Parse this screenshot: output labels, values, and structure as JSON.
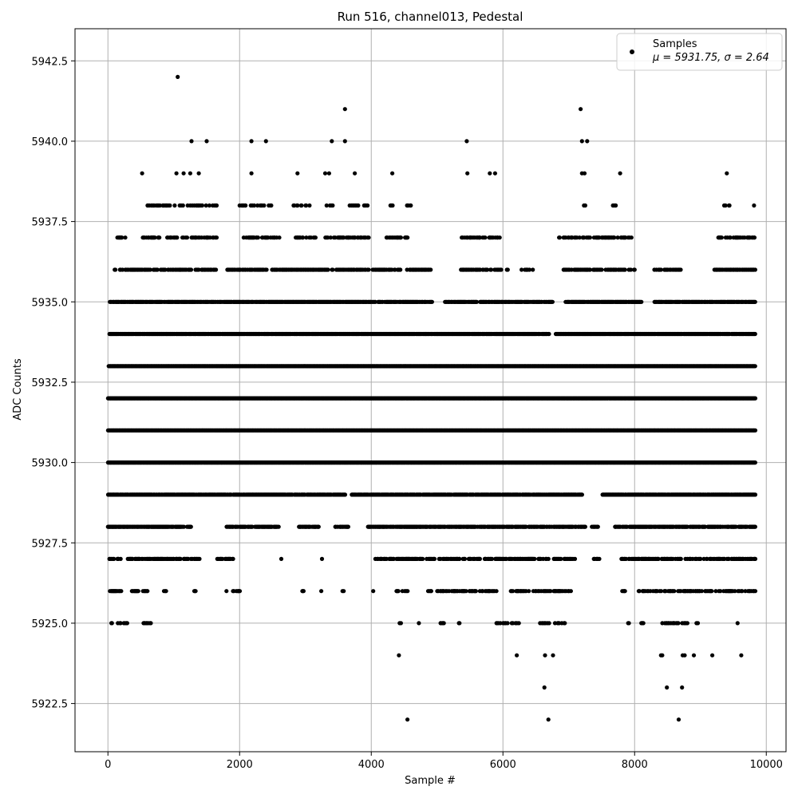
{
  "chart_data": {
    "type": "scatter",
    "title": "Run 516, channel013, Pedestal",
    "xlabel": "Sample #",
    "ylabel": "ADC Counts",
    "xlim": [
      -500,
      10300
    ],
    "ylim": [
      5921.0,
      5943.5
    ],
    "x_ticks": [
      0,
      2000,
      4000,
      6000,
      8000,
      10000
    ],
    "x_tick_labels": [
      "0",
      "2000",
      "4000",
      "6000",
      "8000",
      "10000"
    ],
    "y_ticks": [
      5922.5,
      5925.0,
      5927.5,
      5930.0,
      5932.5,
      5935.0,
      5937.5,
      5940.0,
      5942.5
    ],
    "y_tick_labels": [
      "5922.5",
      "5925.0",
      "5927.5",
      "5930.0",
      "5932.5",
      "5935.0",
      "5937.5",
      "5940.0",
      "5942.5"
    ],
    "grid": true,
    "legend": {
      "placement": "top-right",
      "series_label": "Samples",
      "stats_text": "μ = 5931.75, σ = 2.64"
    },
    "marker_color": "#000000",
    "series": [
      {
        "name": "Samples",
        "sample_range": [
          0,
          9830
        ],
        "mean": 5931.75,
        "sigma": 2.64,
        "level_segments": [
          {
            "y": 5942,
            "x": [
              1060
            ]
          },
          {
            "y": 5941,
            "x": [
              3600,
              7180
            ]
          },
          {
            "y": 5940,
            "x": [
              1270,
              1500,
              2180,
              2400,
              3400,
              3600,
              5450,
              7200,
              7280
            ]
          },
          {
            "y": 5939,
            "x": [
              520,
              1040,
              1150,
              1250,
              1380,
              2180,
              2880,
              3300,
              3360,
              3750,
              4320,
              5460,
              5800,
              5880,
              7200,
              7240,
              7780,
              9400
            ]
          },
          {
            "y": 5924,
            "x": [
              4420,
              6210,
              6640,
              6760,
              8400,
              8420,
              8730,
              8760,
              8900,
              9180,
              9620
            ]
          },
          {
            "y": 5923,
            "x": [
              6630,
              8490,
              8720
            ]
          },
          {
            "y": 5922,
            "x": [
              4550,
              6690,
              8670
            ]
          }
        ],
        "level_ranges": [
          {
            "y": 5938,
            "ranges": [
              [
                580,
                1650
              ],
              [
                1980,
                2480
              ],
              [
                2800,
                3080
              ],
              [
                3320,
                3460
              ],
              [
                3650,
                3980
              ],
              [
                4260,
                4360
              ],
              [
                4520,
                4600
              ],
              [
                7140,
                7260
              ],
              [
                7560,
                7720
              ],
              [
                9360,
                9460
              ],
              [
                9780,
                9830
              ]
            ],
            "density": 0.35
          },
          {
            "y": 5937,
            "ranges": [
              [
                80,
                260
              ],
              [
                520,
                1650
              ],
              [
                2050,
                2600
              ],
              [
                2850,
                3150
              ],
              [
                3300,
                4020
              ],
              [
                4200,
                4600
              ],
              [
                5360,
                5950
              ],
              [
                6850,
                7950
              ],
              [
                9230,
                9830
              ]
            ],
            "density": 0.45
          },
          {
            "y": 5936,
            "ranges": [
              [
                100,
                1650
              ],
              [
                1800,
                4450
              ],
              [
                4520,
                4900
              ],
              [
                5360,
                6100
              ],
              [
                6280,
                6450
              ],
              [
                6900,
                8000
              ],
              [
                8300,
                8700
              ],
              [
                9200,
                9830
              ]
            ],
            "density": 0.6
          },
          {
            "y": 5935,
            "ranges": [
              [
                30,
                4920
              ],
              [
                5100,
                5600
              ],
              [
                5650,
                6750
              ],
              [
                6950,
                8100
              ],
              [
                8300,
                9830
              ]
            ],
            "density": 0.85
          },
          {
            "y": 5934,
            "ranges": [
              [
                20,
                6700
              ],
              [
                6800,
                9830
              ]
            ],
            "density": 0.95
          },
          {
            "y": 5933,
            "ranges": [
              [
                10,
                9830
              ]
            ],
            "density": 1.0
          },
          {
            "y": 5932,
            "ranges": [
              [
                0,
                9830
              ]
            ],
            "density": 1.0
          },
          {
            "y": 5931,
            "ranges": [
              [
                0,
                9830
              ]
            ],
            "density": 1.0
          },
          {
            "y": 5930,
            "ranges": [
              [
                0,
                9830
              ]
            ],
            "density": 1.0
          },
          {
            "y": 5929,
            "ranges": [
              [
                0,
                3600
              ],
              [
                3700,
                7200
              ],
              [
                7500,
                9830
              ]
            ],
            "density": 0.9
          },
          {
            "y": 5928,
            "ranges": [
              [
                0,
                1150
              ],
              [
                1200,
                1260
              ],
              [
                1800,
                2600
              ],
              [
                2900,
                3200
              ],
              [
                3450,
                3650
              ],
              [
                3950,
                7250
              ],
              [
                7350,
                7450
              ],
              [
                7700,
                9830
              ]
            ],
            "density": 0.75
          },
          {
            "y": 5927,
            "ranges": [
              [
                10,
                200
              ],
              [
                300,
                1100
              ],
              [
                1150,
                1400
              ],
              [
                1650,
                1900
              ],
              [
                2620,
                2640
              ],
              [
                3200,
                3250
              ],
              [
                4050,
                5650
              ],
              [
                5700,
                7100
              ],
              [
                7380,
                7460
              ],
              [
                7800,
                9830
              ]
            ],
            "density": 0.55
          },
          {
            "y": 5926,
            "ranges": [
              [
                30,
                200
              ],
              [
                350,
                600
              ],
              [
                850,
                900
              ],
              [
                1300,
                1380
              ],
              [
                1780,
                1800
              ],
              [
                1900,
                2000
              ],
              [
                2950,
                3000
              ],
              [
                3200,
                3260
              ],
              [
                3550,
                3580
              ],
              [
                4000,
                4040
              ],
              [
                4350,
                4550
              ],
              [
                4850,
                5900
              ],
              [
                6100,
                7050
              ],
              [
                7800,
                7850
              ],
              [
                8050,
                9830
              ]
            ],
            "density": 0.45
          },
          {
            "y": 5925,
            "ranges": [
              [
                50,
                60
              ],
              [
                150,
                300
              ],
              [
                520,
                660
              ],
              [
                3550,
                3560
              ],
              [
                4430,
                4470
              ],
              [
                4700,
                4720
              ],
              [
                5050,
                5100
              ],
              [
                5250,
                5350
              ],
              [
                5900,
                6300
              ],
              [
                6550,
                6950
              ],
              [
                7900,
                7920
              ],
              [
                8100,
                8150
              ],
              [
                8400,
                8800
              ],
              [
                8900,
                9000
              ],
              [
                9550,
                9560
              ]
            ],
            "density": 0.45
          }
        ]
      }
    ]
  }
}
